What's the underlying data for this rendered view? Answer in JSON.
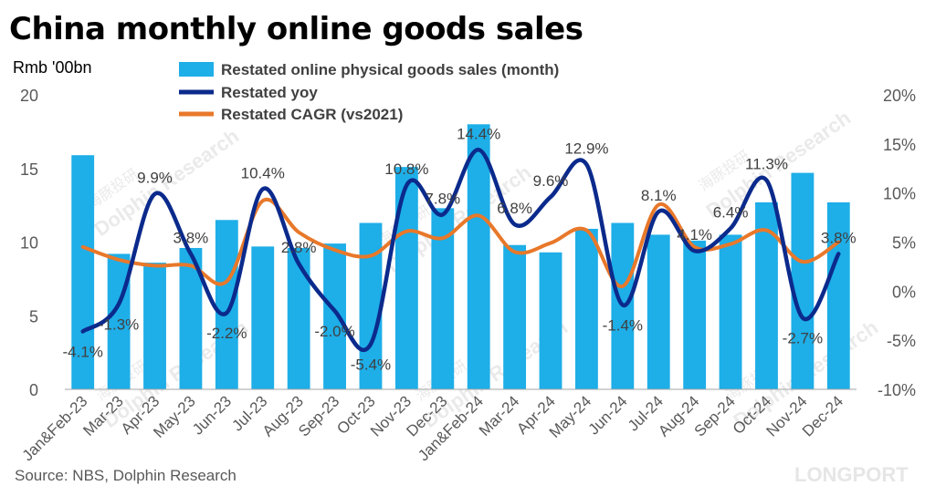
{
  "title": "China monthly online goods sales",
  "unit_label": "Rmb '00bn",
  "source": "Source: NBS, Dolphin Research",
  "watermarks": {
    "dolphin_cn": "海豚投研",
    "dolphin_en": "Dolphin Research",
    "longport": "LONGPORT"
  },
  "colors": {
    "bar": "#1EAEE8",
    "yoy": "#0B2A8C",
    "cagr": "#E8782A",
    "axis_text": "#595959",
    "watermark": "#D9D9D9"
  },
  "chart_data": {
    "type": "bar",
    "categories": [
      "Jan&Feb-23",
      "Mar-23",
      "Apr-23",
      "May-23",
      "Jun-23",
      "Jul-23",
      "Aug-23",
      "Sep-23",
      "Oct-23",
      "Nov-23",
      "Dec-23",
      "Jan&Feb-24",
      "Mar-24",
      "Apr-24",
      "May-24",
      "Jun-24",
      "Jul-24",
      "Aug-24",
      "Sep-24",
      "Oct-24",
      "Nov-24",
      "Dec-24"
    ],
    "series": [
      {
        "name": "Restated online physical goods sales  (month)",
        "type": "bar",
        "axis": "left",
        "values": [
          15.9,
          9.2,
          8.6,
          9.6,
          11.5,
          9.7,
          9.6,
          9.9,
          11.3,
          15.1,
          12.3,
          18.0,
          9.8,
          9.3,
          10.9,
          11.3,
          10.5,
          10.1,
          10.5,
          12.7,
          14.7,
          12.7
        ]
      },
      {
        "name": "Restated yoy",
        "type": "line",
        "axis": "right",
        "values": [
          -4.1,
          -1.3,
          9.9,
          3.8,
          -2.2,
          10.4,
          2.8,
          -2.0,
          -5.4,
          10.8,
          7.8,
          14.4,
          6.8,
          9.6,
          12.9,
          -1.4,
          8.1,
          4.1,
          6.4,
          11.3,
          -2.7,
          3.8
        ],
        "labels": [
          "-4.1%",
          "-1.3%",
          "9.9%",
          "3.8%",
          "-2.2%",
          "10.4%",
          "2.8%",
          "-2.0%",
          "-5.4%",
          "10.8%",
          "7.8%",
          "14.4%",
          "6.8%",
          "9.6%",
          "12.9%",
          "-1.4%",
          "8.1%",
          "4.1%",
          "6.4%",
          "11.3%",
          "-2.7%",
          "3.8%"
        ]
      },
      {
        "name": "Restated CAGR (vs2021)",
        "type": "line",
        "axis": "right",
        "values": [
          4.5,
          3.2,
          2.6,
          2.6,
          1.0,
          9.2,
          6.0,
          4.2,
          3.6,
          6.1,
          5.4,
          7.7,
          4.0,
          4.9,
          6.2,
          0.5,
          8.8,
          4.5,
          4.8,
          6.2,
          3.0,
          5.0
        ]
      }
    ],
    "y_left": {
      "ylim": [
        0,
        20
      ],
      "ticks": [
        "0",
        "5",
        "10",
        "15",
        "20"
      ]
    },
    "y_right": {
      "ylim": [
        -10,
        20
      ],
      "ticks": [
        "-10%",
        "-5%",
        "0%",
        "5%",
        "10%",
        "15%",
        "20%"
      ]
    },
    "grid": false,
    "legend": "top-center"
  }
}
